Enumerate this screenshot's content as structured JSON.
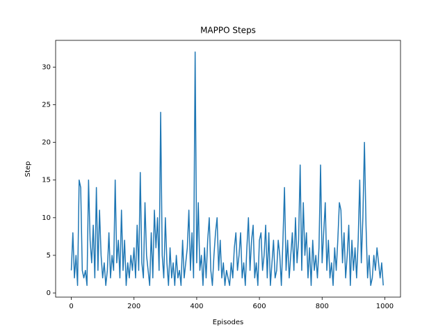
{
  "chart_data": {
    "type": "line",
    "title": "MAPPO Steps",
    "x_label": "Episodes",
    "y_label": "Step",
    "color": "#1f77b4",
    "xlim": [
      -50,
      1050
    ],
    "ylim": [
      -0.55,
      33.55
    ],
    "xticks": [
      0,
      200,
      400,
      600,
      800,
      1000
    ],
    "yticks": [
      0,
      5,
      10,
      15,
      20,
      25,
      30
    ],
    "x": [
      0,
      5,
      10,
      15,
      20,
      25,
      30,
      35,
      40,
      45,
      50,
      55,
      60,
      65,
      70,
      75,
      80,
      85,
      90,
      95,
      100,
      105,
      110,
      115,
      120,
      125,
      130,
      135,
      140,
      145,
      150,
      155,
      160,
      165,
      170,
      175,
      180,
      185,
      190,
      195,
      200,
      205,
      210,
      215,
      220,
      225,
      230,
      235,
      240,
      245,
      250,
      255,
      260,
      265,
      270,
      275,
      280,
      285,
      290,
      295,
      300,
      305,
      310,
      315,
      320,
      325,
      330,
      335,
      340,
      345,
      350,
      355,
      360,
      365,
      370,
      375,
      380,
      385,
      390,
      395,
      400,
      405,
      410,
      415,
      420,
      425,
      430,
      435,
      440,
      445,
      450,
      455,
      460,
      465,
      470,
      475,
      480,
      485,
      490,
      495,
      500,
      505,
      510,
      515,
      520,
      525,
      530,
      535,
      540,
      545,
      550,
      555,
      560,
      565,
      570,
      575,
      580,
      585,
      590,
      595,
      600,
      605,
      610,
      615,
      620,
      625,
      630,
      635,
      640,
      645,
      650,
      655,
      660,
      665,
      670,
      675,
      680,
      685,
      690,
      695,
      700,
      705,
      710,
      715,
      720,
      725,
      730,
      735,
      740,
      745,
      750,
      755,
      760,
      765,
      770,
      775,
      780,
      785,
      790,
      795,
      800,
      805,
      810,
      815,
      820,
      825,
      830,
      835,
      840,
      845,
      850,
      855,
      860,
      865,
      870,
      875,
      880,
      885,
      890,
      895,
      900,
      905,
      910,
      915,
      920,
      925,
      930,
      935,
      940,
      945,
      950,
      955,
      960,
      965,
      970,
      975,
      980,
      985,
      990,
      995
    ],
    "values": [
      3,
      8,
      2,
      5,
      1,
      15,
      14,
      3,
      2,
      3,
      1,
      15,
      7,
      4,
      9,
      2,
      14,
      3,
      11,
      5,
      2,
      4,
      1,
      3,
      8,
      2,
      5,
      3,
      15,
      4,
      7,
      2,
      11,
      3,
      7,
      1,
      4,
      2,
      5,
      3,
      6,
      2,
      9,
      3,
      16,
      4,
      2,
      12,
      5,
      3,
      1,
      8,
      2,
      11,
      6,
      10,
      3,
      24,
      5,
      2,
      10,
      4,
      1,
      6,
      2,
      4,
      1,
      5,
      2,
      3,
      1,
      7,
      2,
      4,
      6,
      11,
      3,
      8,
      2,
      32,
      4,
      12,
      3,
      5,
      1,
      6,
      2,
      7,
      10,
      3,
      1,
      5,
      8,
      10,
      3,
      7,
      2,
      4,
      1,
      3,
      2,
      1,
      4,
      2,
      6,
      8,
      3,
      5,
      8,
      2,
      4,
      1,
      6,
      10,
      3,
      7,
      9,
      2,
      4,
      1,
      7,
      8,
      3,
      5,
      9,
      2,
      8,
      1,
      4,
      7,
      2,
      3,
      7,
      5,
      1,
      7,
      14,
      3,
      7,
      2,
      5,
      8,
      3,
      10,
      4,
      7,
      17,
      3,
      12,
      5,
      8,
      2,
      6,
      1,
      7,
      3,
      5,
      2,
      6,
      17,
      4,
      8,
      12,
      3,
      7,
      2,
      4,
      1,
      6,
      3,
      7,
      12,
      11,
      4,
      8,
      2,
      5,
      9,
      1,
      7,
      3,
      6,
      2,
      7,
      15,
      4,
      10,
      20,
      9,
      2,
      5,
      1,
      2,
      5,
      3,
      6,
      4,
      2,
      4,
      1
    ]
  }
}
